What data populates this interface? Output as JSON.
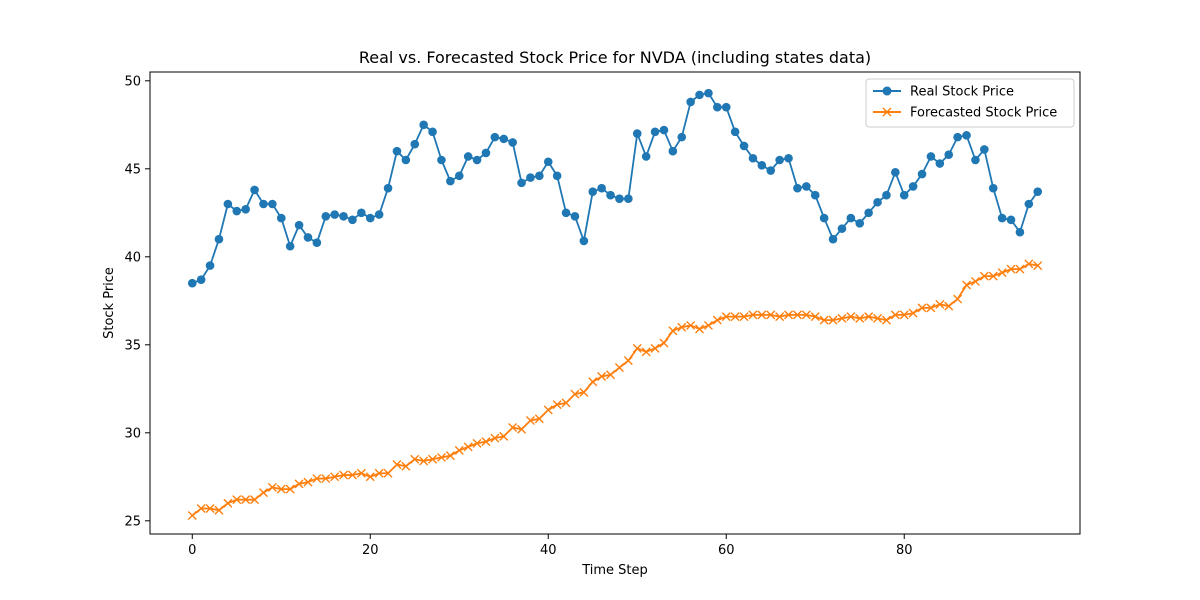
{
  "chart_data": {
    "type": "line",
    "title": "Real vs. Forecasted Stock Price for NVDA (including states data)",
    "xlabel": "Time Step",
    "ylabel": "Stock Price",
    "xlim": [
      -4.75,
      99.75
    ],
    "ylim": [
      24.25,
      50.5
    ],
    "xticks": [
      0,
      20,
      40,
      60,
      80
    ],
    "yticks": [
      25,
      30,
      35,
      40,
      45,
      50
    ],
    "grid": false,
    "legend_position": "top-right",
    "x": [
      0,
      1,
      2,
      3,
      4,
      5,
      6,
      7,
      8,
      9,
      10,
      11,
      12,
      13,
      14,
      15,
      16,
      17,
      18,
      19,
      20,
      21,
      22,
      23,
      24,
      25,
      26,
      27,
      28,
      29,
      30,
      31,
      32,
      33,
      34,
      35,
      36,
      37,
      38,
      39,
      40,
      41,
      42,
      43,
      44,
      45,
      46,
      47,
      48,
      49,
      50,
      51,
      52,
      53,
      54,
      55,
      56,
      57,
      58,
      59,
      60,
      61,
      62,
      63,
      64,
      65,
      66,
      67,
      68,
      69,
      70,
      71,
      72,
      73,
      74,
      75,
      76,
      77,
      78,
      79,
      80,
      81,
      82,
      83,
      84,
      85,
      86,
      87,
      88,
      89,
      90,
      91,
      92,
      93,
      94,
      95
    ],
    "series": [
      {
        "name": "Real Stock Price",
        "color": "#1f77b4",
        "marker": "circle",
        "values": [
          38.5,
          38.7,
          39.5,
          41.0,
          43.0,
          42.6,
          42.7,
          43.8,
          43.0,
          43.0,
          42.2,
          40.6,
          41.8,
          41.1,
          40.8,
          42.3,
          42.4,
          42.3,
          42.1,
          42.5,
          42.2,
          42.4,
          43.9,
          46.0,
          45.5,
          46.4,
          47.5,
          47.1,
          45.5,
          44.3,
          44.6,
          45.7,
          45.5,
          45.9,
          46.8,
          46.7,
          46.5,
          44.2,
          44.5,
          44.6,
          45.4,
          44.6,
          42.5,
          42.3,
          40.9,
          43.7,
          43.9,
          43.5,
          43.3,
          43.3,
          47.0,
          45.7,
          47.1,
          47.2,
          46.0,
          46.8,
          48.8,
          49.2,
          49.3,
          48.5,
          48.5,
          47.1,
          46.3,
          45.6,
          45.2,
          44.9,
          45.5,
          45.6,
          43.9,
          44.0,
          43.5,
          42.2,
          41.0,
          41.6,
          42.2,
          41.9,
          42.5,
          43.1,
          43.5,
          44.8,
          43.5,
          44.0,
          44.7,
          45.7,
          45.3,
          45.8,
          46.8,
          46.9,
          45.5,
          46.1,
          43.9,
          42.2,
          42.1,
          41.4,
          43.0,
          43.7
        ]
      },
      {
        "name": "Forecasted Stock Price",
        "color": "#ff7f0e",
        "marker": "x",
        "values": [
          25.3,
          25.7,
          25.7,
          25.6,
          26.0,
          26.2,
          26.2,
          26.2,
          26.6,
          26.9,
          26.8,
          26.8,
          27.1,
          27.2,
          27.4,
          27.4,
          27.5,
          27.6,
          27.6,
          27.7,
          27.5,
          27.7,
          27.7,
          28.2,
          28.1,
          28.5,
          28.4,
          28.5,
          28.6,
          28.7,
          29.0,
          29.2,
          29.4,
          29.5,
          29.7,
          29.8,
          30.3,
          30.2,
          30.7,
          30.8,
          31.3,
          31.6,
          31.7,
          32.2,
          32.3,
          32.9,
          33.2,
          33.3,
          33.7,
          34.1,
          34.8,
          34.6,
          34.8,
          35.1,
          35.8,
          36.0,
          36.1,
          35.9,
          36.1,
          36.4,
          36.6,
          36.6,
          36.6,
          36.7,
          36.7,
          36.7,
          36.6,
          36.7,
          36.7,
          36.7,
          36.6,
          36.4,
          36.4,
          36.5,
          36.6,
          36.5,
          36.6,
          36.5,
          36.4,
          36.7,
          36.7,
          36.8,
          37.1,
          37.1,
          37.3,
          37.2,
          37.6,
          38.4,
          38.6,
          38.9,
          38.9,
          39.1,
          39.3,
          39.3,
          39.6,
          39.5
        ]
      }
    ]
  }
}
